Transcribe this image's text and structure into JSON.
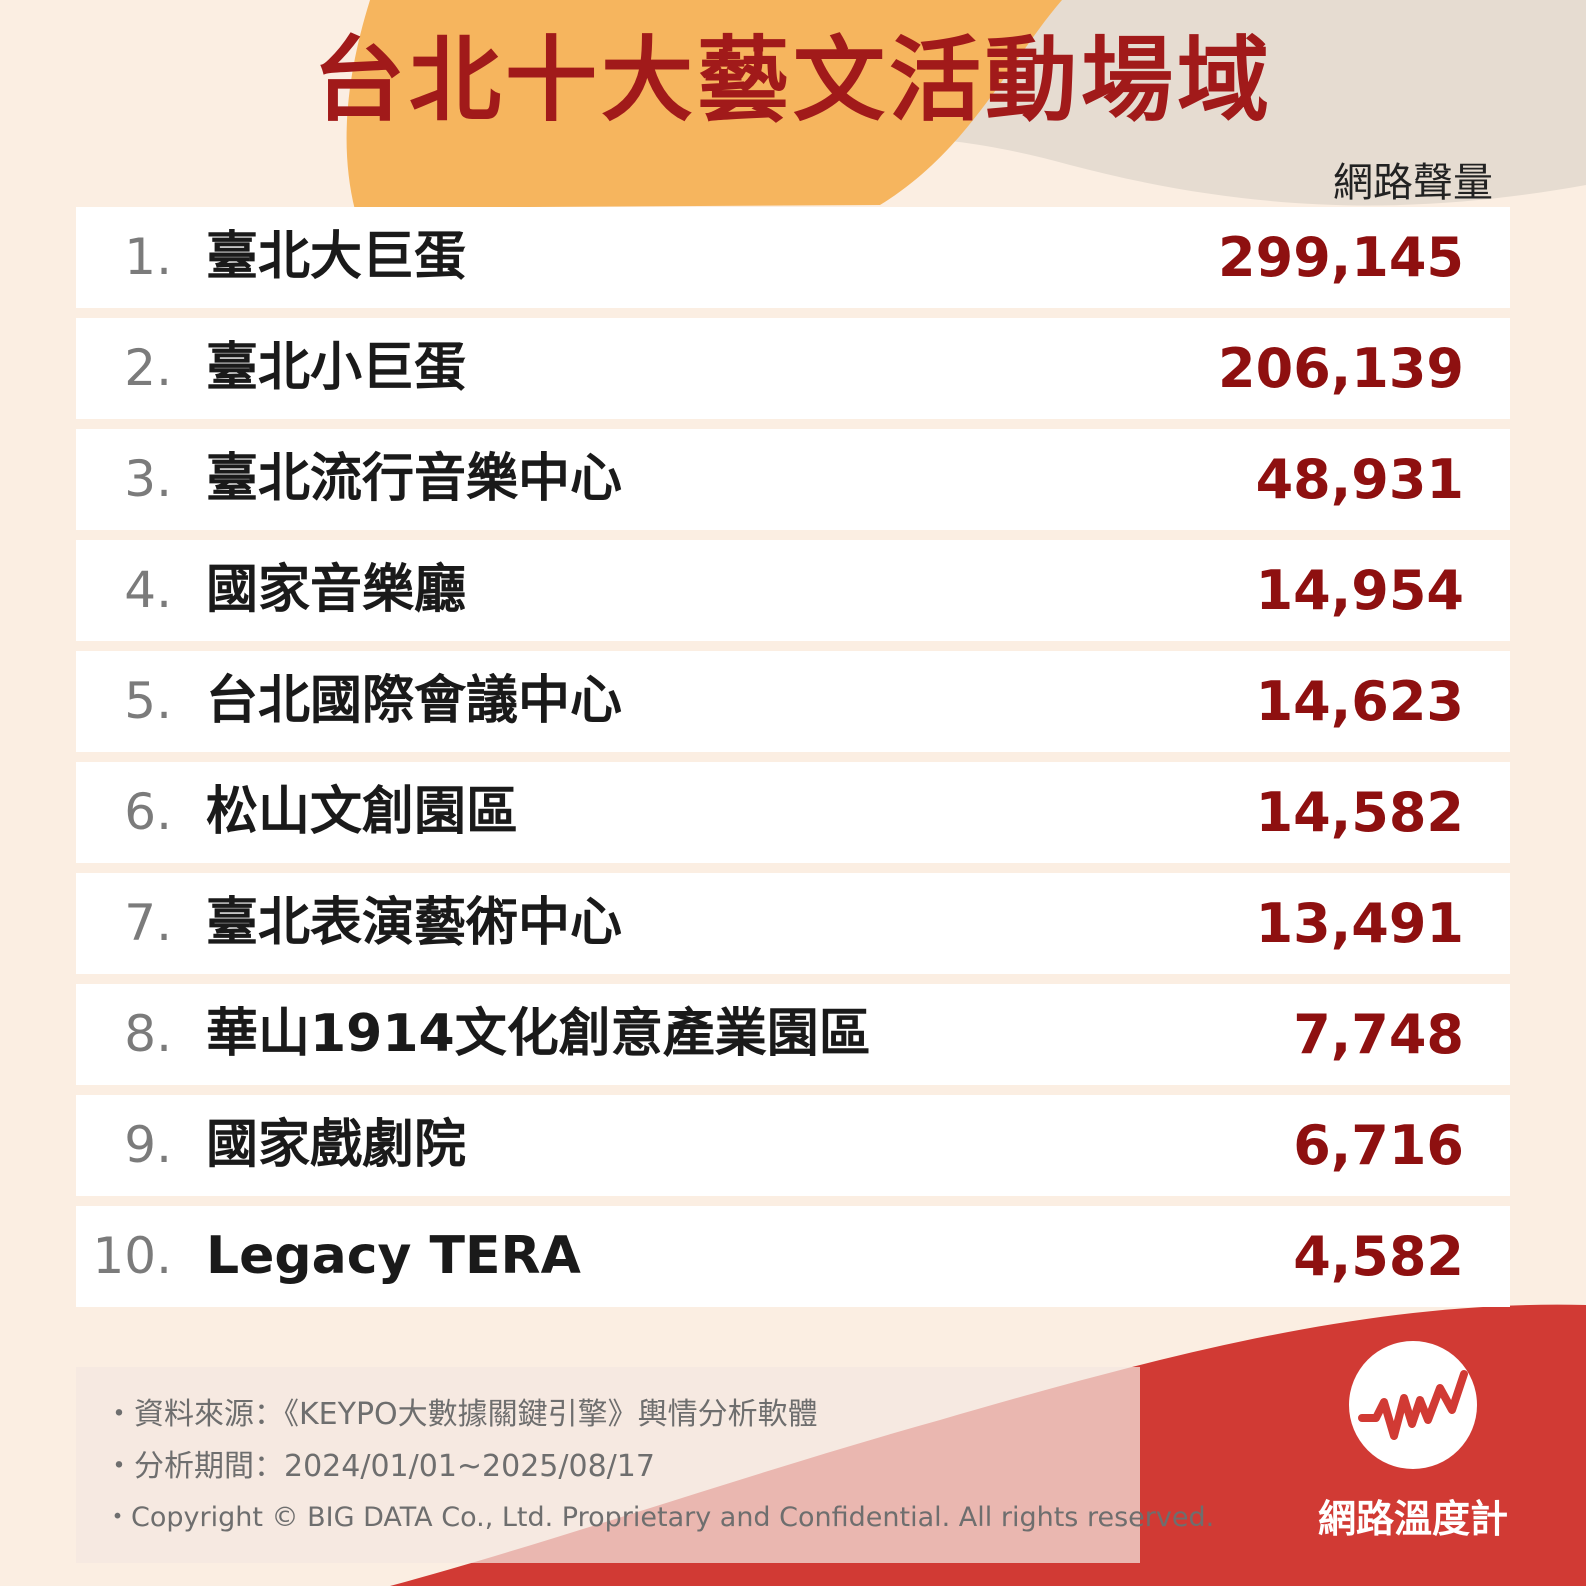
{
  "title": "台北十大藝文活動場域",
  "metric_label": "網路聲量",
  "colors": {
    "value": "#8e1010",
    "title": "#a11a1a",
    "orange": "#f6b55e",
    "red": "#d13a34"
  },
  "chart_data": {
    "type": "table",
    "title": "台北十大藝文活動場域",
    "columns": [
      "",
      "",
      "網路聲量"
    ],
    "rows": [
      {
        "rank": "1.",
        "name": "臺北大巨蛋",
        "value": "299,145"
      },
      {
        "rank": "2.",
        "name": "臺北小巨蛋",
        "value": "206,139"
      },
      {
        "rank": "3.",
        "name": "臺北流行音樂中心",
        "value": "48,931"
      },
      {
        "rank": "4.",
        "name": "國家音樂廳",
        "value": "14,954"
      },
      {
        "rank": "5.",
        "name": "台北國際會議中心",
        "value": "14,623"
      },
      {
        "rank": "6.",
        "name": "松山文創園區",
        "value": "14,582"
      },
      {
        "rank": "7.",
        "name": "臺北表演藝術中心",
        "value": "13,491"
      },
      {
        "rank": "8.",
        "name": "華山1914文化創意產業園區",
        "value": "7,748"
      },
      {
        "rank": "9.",
        "name": "國家戲劇院",
        "value": "6,716"
      },
      {
        "rank": "10.",
        "name": "Legacy TERA",
        "value": "4,582"
      }
    ]
  },
  "notes": [
    "・資料來源：《KEYPO大數據關鍵引擎》輿情分析軟體",
    "・分析期間：2024/01/01~2025/08/17",
    "・Copyright © BIG DATA Co., Ltd. Proprietary and Confidential. All rights reserved."
  ],
  "logo": {
    "text": "網路溫度計",
    "icon": "pulse-line-icon"
  }
}
